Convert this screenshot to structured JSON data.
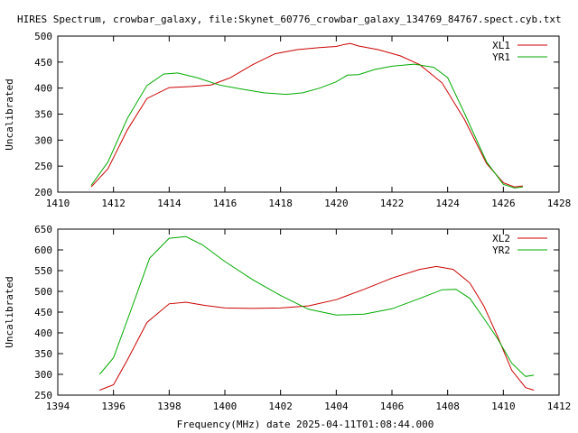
{
  "title": "HIRES Spectrum, crowbar_galaxy, file:Skynet_60776_crowbar_galaxy_134769_84767.spect.cyb.txt",
  "xlabel": "Frequency(MHz) date 2025-04-11T01:08:44.000",
  "chart_data": [
    {
      "type": "line",
      "ylabel": "Uncalibrated",
      "xlim": [
        1410,
        1428
      ],
      "ylim": [
        200,
        500
      ],
      "xticks": [
        1410,
        1412,
        1414,
        1416,
        1418,
        1420,
        1422,
        1424,
        1426,
        1428
      ],
      "yticks": [
        200,
        250,
        300,
        350,
        400,
        450,
        500
      ],
      "legend_position": "top-right",
      "grid": false,
      "series": [
        {
          "name": "XL1",
          "color": "#cc0000",
          "x": [
            1411.2,
            1411.8,
            1412.5,
            1413.2,
            1414.0,
            1414.8,
            1415.5,
            1416.2,
            1417.0,
            1417.8,
            1418.6,
            1419.4,
            1420.0,
            1420.3,
            1420.5,
            1420.8,
            1421.5,
            1422.3,
            1423.0,
            1423.8,
            1424.6,
            1425.4,
            1426.0,
            1426.4,
            1426.7
          ],
          "y": [
            210,
            245,
            320,
            380,
            401,
            403,
            406,
            420,
            445,
            466,
            474,
            478,
            480,
            484,
            486,
            481,
            474,
            462,
            445,
            410,
            340,
            255,
            218,
            210,
            212
          ]
        },
        {
          "name": "YR1",
          "color": "#00aa00",
          "x": [
            1411.2,
            1411.8,
            1412.5,
            1413.2,
            1413.8,
            1414.3,
            1415.0,
            1415.8,
            1416.6,
            1417.4,
            1418.2,
            1418.8,
            1419.4,
            1420.0,
            1420.4,
            1420.8,
            1421.4,
            1422.0,
            1422.8,
            1423.5,
            1424.0,
            1424.6,
            1425.4,
            1426.0,
            1426.4,
            1426.7
          ],
          "y": [
            213,
            258,
            342,
            405,
            427,
            429,
            420,
            406,
            398,
            391,
            388,
            391,
            400,
            412,
            425,
            426,
            436,
            442,
            446,
            440,
            420,
            352,
            258,
            215,
            208,
            210
          ]
        }
      ]
    },
    {
      "type": "line",
      "ylabel": "Uncalibrated",
      "xlim": [
        1394,
        1412
      ],
      "ylim": [
        250,
        650
      ],
      "xticks": [
        1394,
        1396,
        1398,
        1400,
        1402,
        1404,
        1406,
        1408,
        1410,
        1412
      ],
      "yticks": [
        250,
        300,
        350,
        400,
        450,
        500,
        550,
        600,
        650
      ],
      "legend_position": "top-right",
      "grid": false,
      "series": [
        {
          "name": "XL2",
          "color": "#cc0000",
          "x": [
            1395.5,
            1396.0,
            1396.5,
            1397.2,
            1398.0,
            1398.6,
            1399.3,
            1400.0,
            1401.0,
            1402.0,
            1403.0,
            1404.0,
            1405.0,
            1406.0,
            1407.0,
            1407.6,
            1408.2,
            1408.8,
            1409.3,
            1409.8,
            1410.3,
            1410.8,
            1411.1
          ],
          "y": [
            262,
            275,
            335,
            425,
            470,
            474,
            466,
            460,
            459,
            460,
            465,
            480,
            505,
            532,
            553,
            560,
            553,
            520,
            465,
            390,
            310,
            268,
            262
          ]
        },
        {
          "name": "YR2",
          "color": "#00aa00",
          "x": [
            1395.5,
            1396.0,
            1396.6,
            1397.3,
            1398.0,
            1398.6,
            1399.2,
            1400.0,
            1401.0,
            1402.0,
            1403.0,
            1404.0,
            1405.0,
            1406.0,
            1407.0,
            1407.8,
            1408.3,
            1408.8,
            1409.3,
            1409.8,
            1410.3,
            1410.8,
            1411.1
          ],
          "y": [
            300,
            340,
            450,
            580,
            628,
            632,
            612,
            572,
            528,
            490,
            457,
            443,
            445,
            458,
            483,
            504,
            505,
            483,
            435,
            385,
            327,
            295,
            298
          ]
        }
      ]
    }
  ]
}
